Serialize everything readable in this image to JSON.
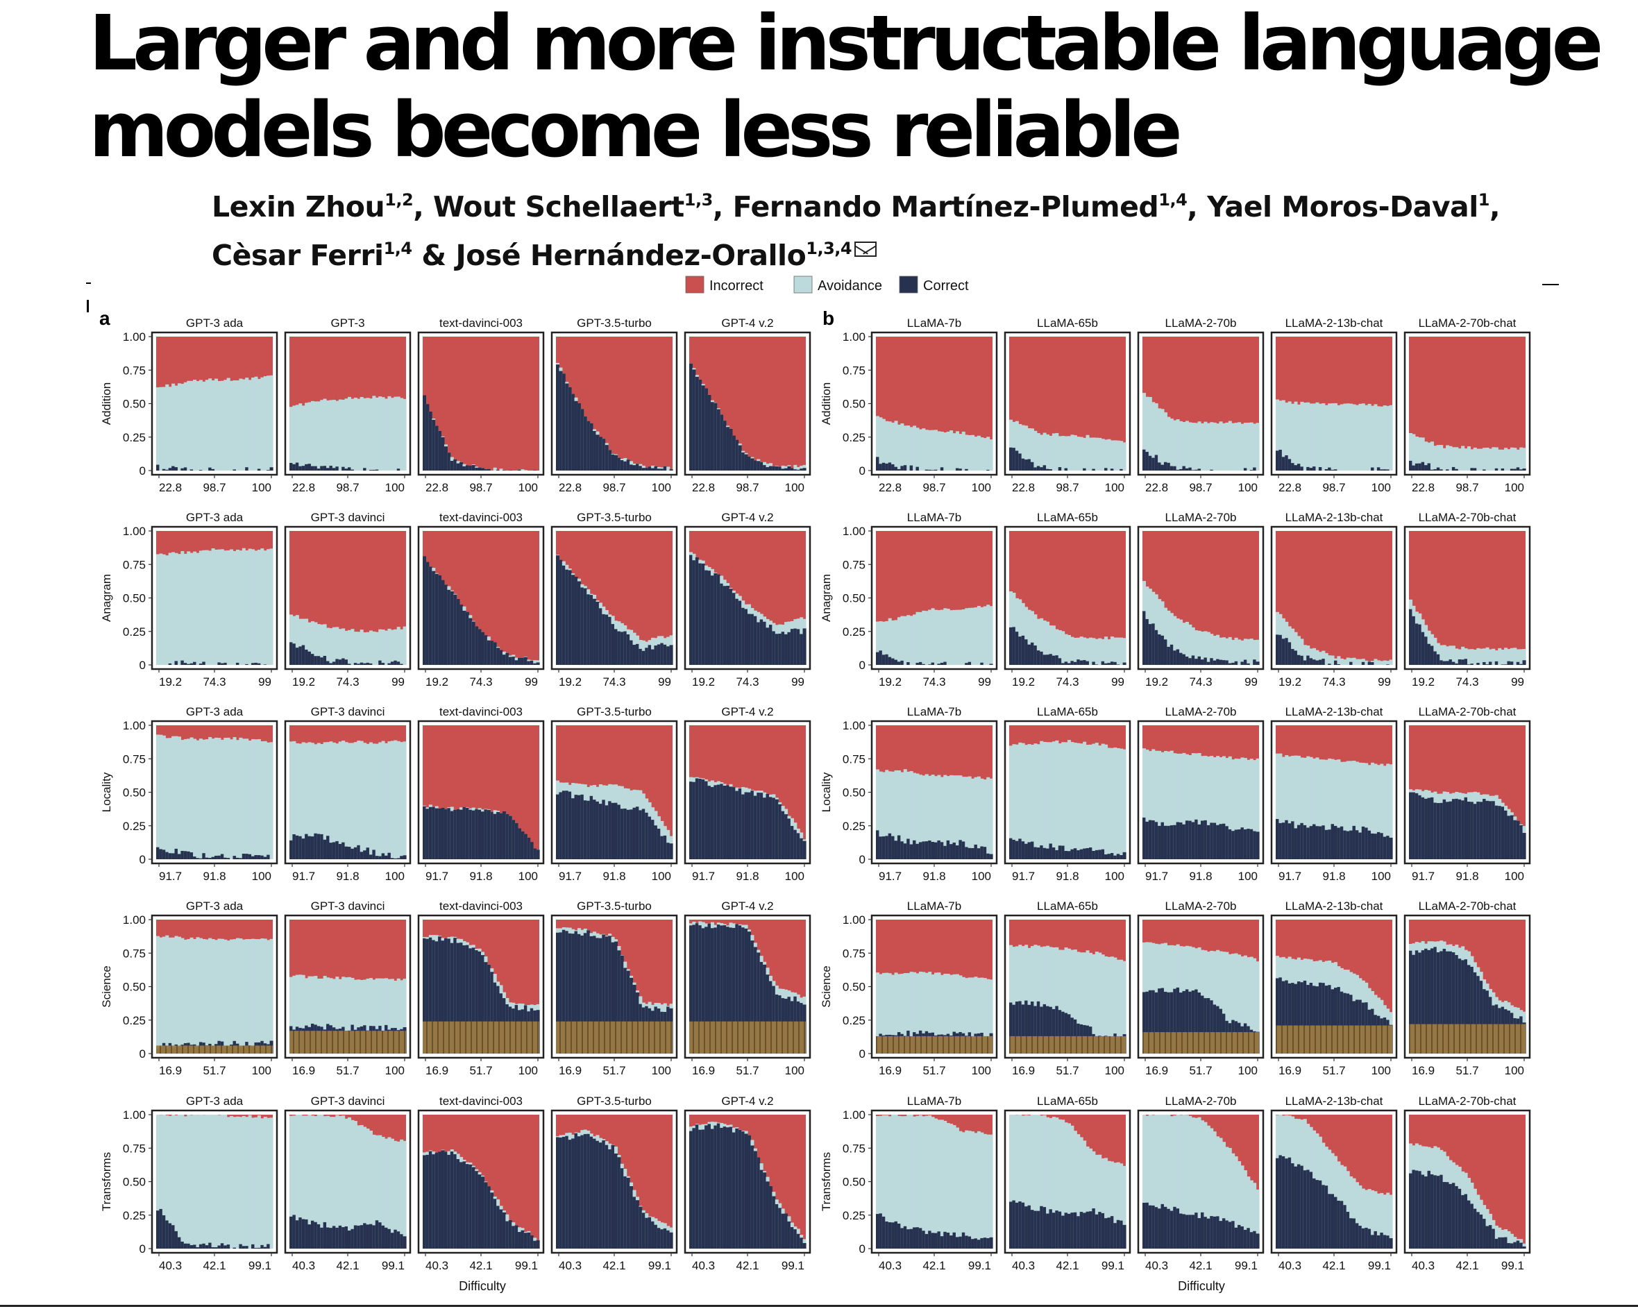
{
  "paper": {
    "title_line1": "Larger and more instructable language",
    "title_line2": "models become less reliable",
    "authors": [
      {
        "name": "Lexin Zhou",
        "aff": "1,2",
        "sep": ", "
      },
      {
        "name": "Wout Schellaert",
        "aff": "1,3",
        "sep": ", "
      },
      {
        "name": "Fernando Martínez-Plumed",
        "aff": "1,4",
        "sep": ", "
      },
      {
        "name": "Yael Moros-Daval",
        "aff": "1",
        "sep": ","
      },
      {
        "name": "Cèsar Ferri",
        "aff": "1,4",
        "sep": " & "
      },
      {
        "name": "José Hernández-Orallo",
        "aff": "1,3,4",
        "sep": ""
      }
    ],
    "corresponding_icon": "envelope-icon"
  },
  "chart_data": {
    "type": "area",
    "kind": "stacked-proportion",
    "xlabel": "Difficulty",
    "legend": {
      "position": "top",
      "items": [
        {
          "label": "Incorrect",
          "color": "#c9504f"
        },
        {
          "label": "Avoidance",
          "color": "#bcd9dc"
        },
        {
          "label": "Correct",
          "color": "#263250"
        }
      ]
    },
    "hatch_color": "#9b7a44",
    "y_ticks": [
      "1.00",
      "0.75",
      "0.50",
      "0.25",
      "0"
    ],
    "panel_labels": [
      "a",
      "b"
    ],
    "panels_a_titles": [
      [
        "GPT-3 ada",
        "GPT-3",
        "text-davinci-003",
        "GPT-3.5-turbo",
        "GPT-4 v.2"
      ],
      [
        "GPT-3 ada",
        "GPT-3 davinci",
        "text-davinci-003",
        "GPT-3.5-turbo",
        "GPT-4 v.2"
      ],
      [
        "GPT-3 ada",
        "GPT-3 davinci",
        "text-davinci-003",
        "GPT-3.5-turbo",
        "GPT-4 v.2"
      ],
      [
        "GPT-3 ada",
        "GPT-3 davinci",
        "text-davinci-003",
        "GPT-3.5-turbo",
        "GPT-4 v.2"
      ],
      [
        "GPT-3 ada",
        "GPT-3 davinci",
        "text-davinci-003",
        "GPT-3.5-turbo",
        "GPT-4 v.2"
      ]
    ],
    "panels_b_titles": [
      "LLaMA-7b",
      "LLaMA-65b",
      "LLaMA-2-70b",
      "LLaMA-2-13b-chat",
      "LLaMA-2-70b-chat"
    ],
    "rows": [
      {
        "name": "Addition",
        "x_ticks": [
          "22.8",
          "98.7",
          "100"
        ],
        "a": [
          {
            "c": [
              0.02,
              0.01,
              0,
              0,
              0
            ],
            "a": [
              0.62,
              0.66,
              0.68,
              0.68,
              0.7
            ],
            "h": 0
          },
          {
            "c": [
              0.06,
              0.02,
              0,
              0,
              0
            ],
            "a": [
              0.48,
              0.52,
              0.54,
              0.55,
              0.54
            ],
            "h": 0
          },
          {
            "c": [
              0.55,
              0.08,
              0.02,
              0,
              0
            ],
            "a": [
              0.55,
              0.08,
              0.02,
              0,
              0
            ],
            "h": 0
          },
          {
            "c": [
              0.8,
              0.4,
              0.12,
              0.03,
              0.02
            ],
            "a": [
              0.8,
              0.4,
              0.12,
              0.03,
              0.02
            ],
            "h": 0
          },
          {
            "c": [
              0.8,
              0.45,
              0.1,
              0.03,
              0.03
            ],
            "a": [
              0.8,
              0.45,
              0.1,
              0.03,
              0.03
            ],
            "h": 0
          }
        ],
        "b": [
          {
            "c": [
              0.08,
              0.02,
              0,
              0,
              0
            ],
            "a": [
              0.4,
              0.34,
              0.3,
              0.28,
              0.24
            ],
            "h": 0
          },
          {
            "c": [
              0.18,
              0.02,
              0,
              0,
              0
            ],
            "a": [
              0.38,
              0.28,
              0.26,
              0.25,
              0.22
            ],
            "h": 0
          },
          {
            "c": [
              0.15,
              0.02,
              0,
              0,
              0
            ],
            "a": [
              0.58,
              0.38,
              0.36,
              0.36,
              0.36
            ],
            "h": 0
          },
          {
            "c": [
              0.15,
              0.01,
              0,
              0,
              0
            ],
            "a": [
              0.52,
              0.5,
              0.5,
              0.49,
              0.48
            ],
            "h": 0
          },
          {
            "c": [
              0.06,
              0.02,
              0,
              0,
              0
            ],
            "a": [
              0.28,
              0.18,
              0.17,
              0.17,
              0.16
            ],
            "h": 0
          }
        ]
      },
      {
        "name": "Anagram",
        "x_ticks": [
          "19.2",
          "74.3",
          "99"
        ],
        "a": [
          {
            "c": [
              0.02,
              0.01,
              0,
              0,
              0
            ],
            "a": [
              0.82,
              0.84,
              0.86,
              0.86,
              0.86
            ],
            "h": 0
          },
          {
            "c": [
              0.18,
              0.05,
              0.02,
              0.01,
              0.01
            ],
            "a": [
              0.38,
              0.3,
              0.26,
              0.25,
              0.28
            ],
            "h": 0
          },
          {
            "c": [
              0.8,
              0.55,
              0.25,
              0.06,
              0.03
            ],
            "a": [
              0.8,
              0.55,
              0.25,
              0.07,
              0.04
            ],
            "h": 0
          },
          {
            "c": [
              0.82,
              0.55,
              0.3,
              0.12,
              0.15
            ],
            "a": [
              0.82,
              0.58,
              0.35,
              0.18,
              0.22
            ],
            "h": 0
          },
          {
            "c": [
              0.82,
              0.65,
              0.4,
              0.25,
              0.25
            ],
            "a": [
              0.84,
              0.68,
              0.45,
              0.3,
              0.35
            ],
            "h": 0
          }
        ],
        "b": [
          {
            "c": [
              0.1,
              0.02,
              0,
              0,
              0
            ],
            "a": [
              0.32,
              0.36,
              0.42,
              0.42,
              0.44
            ],
            "h": 0
          },
          {
            "c": [
              0.3,
              0.1,
              0.02,
              0.01,
              0.01
            ],
            "a": [
              0.55,
              0.35,
              0.22,
              0.2,
              0.2
            ],
            "h": 0
          },
          {
            "c": [
              0.38,
              0.12,
              0.04,
              0.02,
              0.02
            ],
            "a": [
              0.62,
              0.38,
              0.25,
              0.2,
              0.18
            ],
            "h": 0
          },
          {
            "c": [
              0.25,
              0.05,
              0.01,
              0,
              0
            ],
            "a": [
              0.4,
              0.15,
              0.06,
              0.04,
              0.03
            ],
            "h": 0
          },
          {
            "c": [
              0.4,
              0.05,
              0.02,
              0.01,
              0.01
            ],
            "a": [
              0.48,
              0.15,
              0.12,
              0.12,
              0.12
            ],
            "h": 0
          }
        ]
      },
      {
        "name": "Locality",
        "x_ticks": [
          "91.7",
          "91.8",
          "100"
        ],
        "a": [
          {
            "c": [
              0.08,
              0.04,
              0.02,
              0.02,
              0.01
            ],
            "a": [
              0.92,
              0.9,
              0.9,
              0.9,
              0.88
            ],
            "h": 0
          },
          {
            "c": [
              0.16,
              0.18,
              0.1,
              0.05,
              0.02
            ],
            "a": [
              0.88,
              0.86,
              0.88,
              0.87,
              0.88
            ],
            "h": 0
          },
          {
            "c": [
              0.4,
              0.38,
              0.38,
              0.34,
              0.06
            ],
            "a": [
              0.4,
              0.38,
              0.38,
              0.34,
              0.06
            ],
            "h": 0
          },
          {
            "c": [
              0.5,
              0.46,
              0.4,
              0.38,
              0.1
            ],
            "a": [
              0.58,
              0.55,
              0.55,
              0.5,
              0.18
            ],
            "h": 0
          },
          {
            "c": [
              0.6,
              0.55,
              0.5,
              0.45,
              0.12
            ],
            "a": [
              0.62,
              0.57,
              0.53,
              0.48,
              0.16
            ],
            "h": 0
          }
        ],
        "b": [
          {
            "c": [
              0.2,
              0.14,
              0.12,
              0.12,
              0.06
            ],
            "a": [
              0.66,
              0.66,
              0.62,
              0.62,
              0.6
            ],
            "h": 0
          },
          {
            "c": [
              0.16,
              0.1,
              0.08,
              0.06,
              0.04
            ],
            "a": [
              0.86,
              0.87,
              0.88,
              0.86,
              0.82
            ],
            "h": 0
          },
          {
            "c": [
              0.3,
              0.25,
              0.28,
              0.24,
              0.2
            ],
            "a": [
              0.82,
              0.8,
              0.78,
              0.76,
              0.74
            ],
            "h": 0
          },
          {
            "c": [
              0.28,
              0.24,
              0.24,
              0.22,
              0.18
            ],
            "a": [
              0.78,
              0.76,
              0.74,
              0.72,
              0.7
            ],
            "h": 0
          },
          {
            "c": [
              0.48,
              0.44,
              0.44,
              0.42,
              0.22
            ],
            "a": [
              0.52,
              0.5,
              0.5,
              0.48,
              0.24
            ],
            "h": 0
          }
        ]
      },
      {
        "name": "Science",
        "x_ticks": [
          "16.9",
          "51.7",
          "100"
        ],
        "a": [
          {
            "c": [
              0.06,
              0.06,
              0.07,
              0.07,
              0.08
            ],
            "a": [
              0.88,
              0.86,
              0.86,
              0.85,
              0.85
            ],
            "h": 0.06
          },
          {
            "c": [
              0.2,
              0.2,
              0.19,
              0.2,
              0.18
            ],
            "a": [
              0.58,
              0.57,
              0.56,
              0.56,
              0.55
            ],
            "h": 0.17
          },
          {
            "c": [
              0.86,
              0.85,
              0.75,
              0.35,
              0.33
            ],
            "a": [
              0.88,
              0.87,
              0.78,
              0.38,
              0.36
            ],
            "h": 0.24
          },
          {
            "c": [
              0.92,
              0.9,
              0.85,
              0.35,
              0.33
            ],
            "a": [
              0.94,
              0.92,
              0.88,
              0.38,
              0.36
            ],
            "h": 0.24
          },
          {
            "c": [
              0.96,
              0.96,
              0.95,
              0.45,
              0.38
            ],
            "a": [
              0.98,
              0.97,
              0.96,
              0.5,
              0.42
            ],
            "h": 0.24
          }
        ],
        "b": [
          {
            "c": [
              0.15,
              0.15,
              0.15,
              0.14,
              0.14
            ],
            "a": [
              0.6,
              0.6,
              0.6,
              0.58,
              0.55
            ],
            "h": 0.13
          },
          {
            "c": [
              0.38,
              0.38,
              0.3,
              0.15,
              0.12
            ],
            "a": [
              0.8,
              0.8,
              0.78,
              0.75,
              0.7
            ],
            "h": 0.13
          },
          {
            "c": [
              0.48,
              0.48,
              0.45,
              0.25,
              0.18
            ],
            "a": [
              0.82,
              0.82,
              0.78,
              0.75,
              0.7
            ],
            "h": 0.16
          },
          {
            "c": [
              0.55,
              0.52,
              0.5,
              0.38,
              0.22
            ],
            "a": [
              0.72,
              0.7,
              0.68,
              0.55,
              0.32
            ],
            "h": 0.21
          },
          {
            "c": [
              0.75,
              0.78,
              0.7,
              0.35,
              0.25
            ],
            "a": [
              0.82,
              0.84,
              0.78,
              0.42,
              0.32
            ],
            "h": 0.22
          }
        ]
      },
      {
        "name": "Transforms",
        "x_ticks": [
          "40.3",
          "42.1",
          "99.1"
        ],
        "a": [
          {
            "c": [
              0.3,
              0.04,
              0.02,
              0.02,
              0.02
            ],
            "a": [
              1.0,
              1.0,
              1.0,
              0.99,
              0.98
            ],
            "h": 0
          },
          {
            "c": [
              0.25,
              0.18,
              0.15,
              0.2,
              0.1
            ],
            "a": [
              1.0,
              1.0,
              0.98,
              0.85,
              0.8
            ],
            "h": 0
          },
          {
            "c": [
              0.7,
              0.72,
              0.55,
              0.2,
              0.05
            ],
            "a": [
              0.72,
              0.74,
              0.57,
              0.22,
              0.07
            ],
            "h": 0
          },
          {
            "c": [
              0.82,
              0.85,
              0.75,
              0.25,
              0.12
            ],
            "a": [
              0.84,
              0.88,
              0.78,
              0.28,
              0.16
            ],
            "h": 0
          },
          {
            "c": [
              0.9,
              0.92,
              0.85,
              0.35,
              0.05
            ],
            "a": [
              0.92,
              0.94,
              0.88,
              0.38,
              0.07
            ],
            "h": 0
          }
        ],
        "b": [
          {
            "c": [
              0.25,
              0.15,
              0.12,
              0.1,
              0.08
            ],
            "a": [
              1.0,
              1.0,
              0.98,
              0.88,
              0.86
            ],
            "h": 0
          },
          {
            "c": [
              0.35,
              0.3,
              0.25,
              0.28,
              0.18
            ],
            "a": [
              1.0,
              1.0,
              0.95,
              0.7,
              0.62
            ],
            "h": 0
          },
          {
            "c": [
              0.35,
              0.3,
              0.25,
              0.2,
              0.1
            ],
            "a": [
              1.0,
              1.0,
              0.98,
              0.75,
              0.45
            ],
            "h": 0
          },
          {
            "c": [
              0.7,
              0.6,
              0.4,
              0.15,
              0.08
            ],
            "a": [
              1.0,
              0.96,
              0.7,
              0.45,
              0.4
            ],
            "h": 0
          },
          {
            "c": [
              0.58,
              0.55,
              0.4,
              0.1,
              0.02
            ],
            "a": [
              0.78,
              0.75,
              0.55,
              0.18,
              0.05
            ],
            "h": 0
          }
        ]
      }
    ]
  }
}
